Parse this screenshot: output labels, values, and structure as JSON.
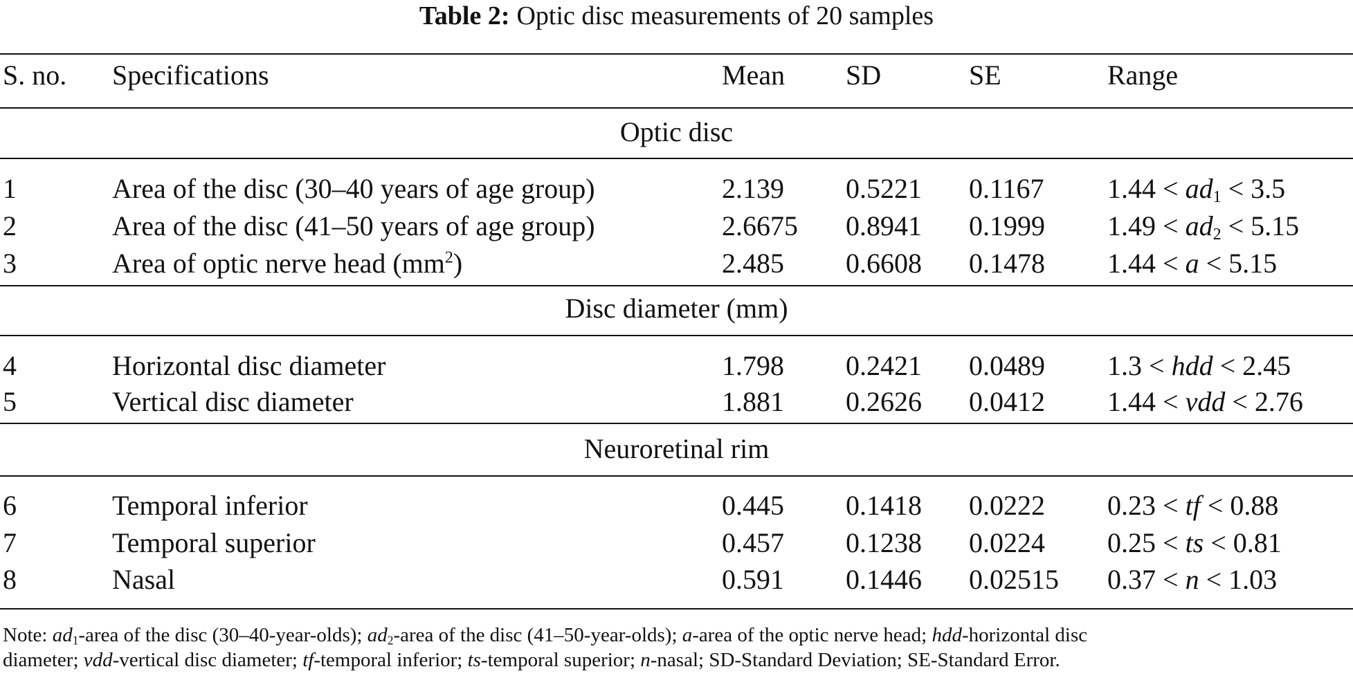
{
  "table": {
    "label": "Table 2:",
    "caption": "Optic disc measurements of 20 samples",
    "headers": {
      "sno": "S. no.",
      "spec": "Specifications",
      "mean": "Mean",
      "sd": "SD",
      "se": "SE",
      "range": "Range"
    },
    "sections": [
      {
        "title": "Optic disc",
        "rows": [
          {
            "sno": "1",
            "spec": "Area of the disc (30–40 years of age group)",
            "mean": "2.139",
            "sd": "0.5221",
            "se": "0.1167",
            "range": {
              "low": "1.44 <",
              "var": "ad",
              "sub": "1",
              "high": "< 3.5"
            }
          },
          {
            "sno": "2",
            "spec": "Area of the disc (41–50 years of age group)",
            "mean": "2.6675",
            "sd": "0.8941",
            "se": "0.1999",
            "range": {
              "low": "1.49 <",
              "var": "ad",
              "sub": "2",
              "high": "< 5.15"
            }
          },
          {
            "sno": "3",
            "spec": "Area of optic nerve head (mm",
            "spec_sup": "2",
            "spec_end": ")",
            "mean": "2.485",
            "sd": "0.6608",
            "se": "0.1478",
            "range": {
              "low": "1.44 <",
              "var": "a",
              "high": "< 5.15"
            }
          }
        ]
      },
      {
        "title": "Disc diameter (mm)",
        "rows": [
          {
            "sno": "4",
            "spec": "Horizontal disc diameter",
            "mean": "1.798",
            "sd": "0.2421",
            "se": "0.0489",
            "range": {
              "low": "1.3 <",
              "var": "hdd",
              "high": "< 2.45"
            }
          },
          {
            "sno": "5",
            "spec": "Vertical disc diameter",
            "mean": "1.881",
            "sd": "0.2626",
            "se": "0.0412",
            "range": {
              "low": "1.44 <",
              "var": "vdd",
              "high": "< 2.76"
            }
          }
        ]
      },
      {
        "title": "Neuroretinal rim",
        "rows": [
          {
            "sno": "6",
            "spec": "Temporal inferior",
            "mean": "0.445",
            "sd": "0.1418",
            "se": "0.0222",
            "range": {
              "low": "0.23 <",
              "var": "tf",
              "high": "< 0.88"
            }
          },
          {
            "sno": "7",
            "spec": "Temporal superior",
            "mean": "0.457",
            "sd": "0.1238",
            "se": "0.0224",
            "range": {
              "low": "0.25 <",
              "var": "ts",
              "high": "< 0.81"
            }
          },
          {
            "sno": "8",
            "spec": "Nasal",
            "mean": "0.591",
            "sd": "0.1446",
            "se": "0.02515",
            "range": {
              "low": "0.37 <",
              "var": "n",
              "high": "< 1.03"
            }
          }
        ]
      }
    ],
    "note": {
      "prefix": "Note:",
      "items": [
        {
          "var": "ad",
          "sub": "1",
          "text": "-area of the disc (30–40-year-olds);"
        },
        {
          "var": "ad",
          "sub": "2",
          "text": "-area of the disc (41–50-year-olds);"
        },
        {
          "var": "a",
          "text": "-area of the optic nerve head;"
        },
        {
          "var": "hdd",
          "text": "-horizontal disc",
          "text2": "diameter;"
        },
        {
          "var": "vdd",
          "text": "-vertical disc diameter;"
        },
        {
          "var": "tf",
          "text": "-temporal inferior;"
        },
        {
          "var": "ts",
          "text": "-temporal superior;"
        },
        {
          "var": "n",
          "text": "-nasal;"
        }
      ],
      "tail": "SD-Standard Deviation; SE-Standard Error."
    }
  }
}
